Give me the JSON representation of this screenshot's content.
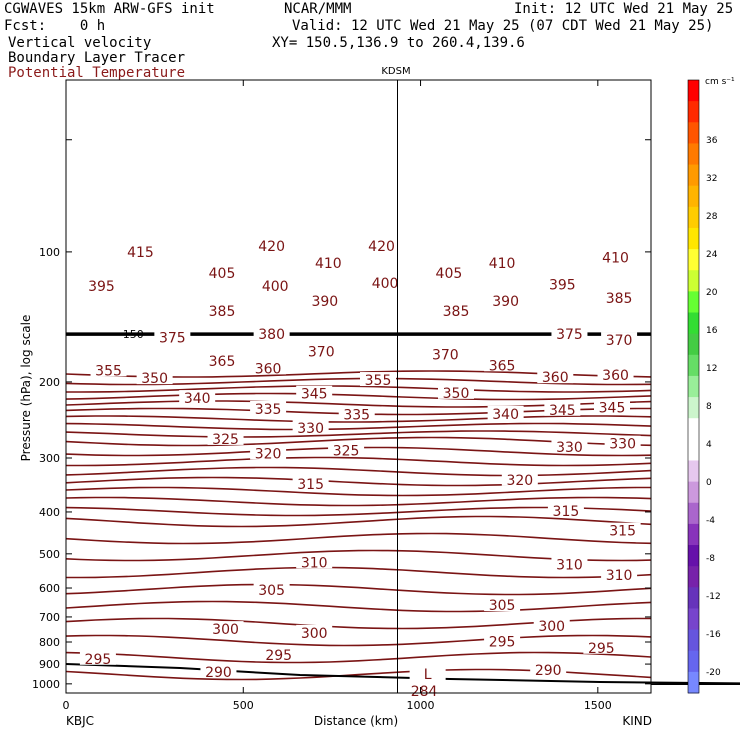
{
  "header": {
    "line1_left": "CGWAVES 15km ARW-GFS init",
    "line1_mid": "NCAR/MMM",
    "line1_right": "Init: 12 UTC Wed 21 May 25",
    "line2_left": "Fcst:    0 h",
    "line2_right": "Valid: 12 UTC Wed 21 May 25 (07 CDT Wed 21 May 25)",
    "line3_left": "Vertical velocity",
    "line3_right": "XY= 150.5,136.9 to 260.4,139.6",
    "line4_left": "Boundary Layer Tracer",
    "line5_left": "Potential Temperature"
  },
  "colors": {
    "contour": "#7a1414",
    "trop": "#000000"
  },
  "chart_data": {
    "type": "contour-cross-section",
    "title": "KDSM",
    "xlabel": "Distance (km)",
    "ylabel": "Pressure (hPa), log scale",
    "xlim": [
      0,
      1650
    ],
    "ylim": [
      1050,
      40
    ],
    "x_ticks": [
      0,
      500,
      1000,
      1500
    ],
    "x_tick_labels": [
      "0",
      "500",
      "1000",
      "1500"
    ],
    "y_ticks": [
      100,
      200,
      300,
      400,
      500,
      600,
      700,
      800,
      900,
      1000
    ],
    "y_tick_labels": [
      "100",
      "200",
      "300",
      "400",
      "500",
      "600",
      "700",
      "800",
      "900",
      "1000"
    ],
    "station_left": "KBJC",
    "station_right": "KIND",
    "vertical_marker_x": 935,
    "colorbar": {
      "units": "cm s⁻¹",
      "labels": [
        "36",
        "32",
        "28",
        "24",
        "20",
        "16",
        "12",
        "8",
        "4",
        "0",
        "-4",
        "-8",
        "-12",
        "-16",
        "-20"
      ],
      "colors": [
        "#ff0000",
        "#ff2a00",
        "#ff5500",
        "#ff7a00",
        "#ff9a00",
        "#ffb400",
        "#ffcc00",
        "#ffe600",
        "#ffff33",
        "#ccff33",
        "#66ff33",
        "#33dd33",
        "#44cc44",
        "#66dd66",
        "#99ee99",
        "#ccf5cc",
        "#ffffff",
        "#ffffff",
        "#e6c8ee",
        "#cc99dd",
        "#aa66cc",
        "#8833bb",
        "#6611aa",
        "#7722aa",
        "#6633bb",
        "#7744cc",
        "#6655dd",
        "#6666ee",
        "#7788ff"
      ]
    },
    "tropopause": {
      "label": "150",
      "pressure": 155
    },
    "labels": [
      {
        "text": "415",
        "x": 210,
        "p": 100
      },
      {
        "text": "420",
        "x": 580,
        "p": 97
      },
      {
        "text": "420",
        "x": 890,
        "p": 97
      },
      {
        "text": "410",
        "x": 740,
        "p": 106
      },
      {
        "text": "410",
        "x": 1230,
        "p": 106
      },
      {
        "text": "410",
        "x": 1550,
        "p": 103
      },
      {
        "text": "405",
        "x": 440,
        "p": 112
      },
      {
        "text": "405",
        "x": 1080,
        "p": 112
      },
      {
        "text": "400",
        "x": 590,
        "p": 120
      },
      {
        "text": "400",
        "x": 900,
        "p": 118
      },
      {
        "text": "395",
        "x": 100,
        "p": 120
      },
      {
        "text": "395",
        "x": 1400,
        "p": 119
      },
      {
        "text": "390",
        "x": 730,
        "p": 130
      },
      {
        "text": "390",
        "x": 1240,
        "p": 130
      },
      {
        "text": "385",
        "x": 440,
        "p": 137
      },
      {
        "text": "385",
        "x": 1100,
        "p": 137
      },
      {
        "text": "385",
        "x": 1560,
        "p": 128
      },
      {
        "text": "380",
        "x": 580,
        "p": 155
      },
      {
        "text": "375",
        "x": 300,
        "p": 158
      },
      {
        "text": "375",
        "x": 1420,
        "p": 155
      },
      {
        "text": "370",
        "x": 720,
        "p": 170
      },
      {
        "text": "370",
        "x": 1070,
        "p": 173
      },
      {
        "text": "370",
        "x": 1560,
        "p": 160
      },
      {
        "text": "365",
        "x": 440,
        "p": 179
      },
      {
        "text": "365",
        "x": 1230,
        "p": 183
      },
      {
        "text": "360",
        "x": 570,
        "p": 186
      },
      {
        "text": "360",
        "x": 1380,
        "p": 195
      },
      {
        "text": "360",
        "x": 1550,
        "p": 193
      },
      {
        "text": "355",
        "x": 120,
        "p": 188
      },
      {
        "text": "355",
        "x": 880,
        "p": 198
      },
      {
        "text": "350",
        "x": 250,
        "p": 196
      },
      {
        "text": "350",
        "x": 1100,
        "p": 212
      },
      {
        "text": "345",
        "x": 700,
        "p": 213
      },
      {
        "text": "345",
        "x": 1400,
        "p": 232
      },
      {
        "text": "345",
        "x": 1540,
        "p": 229
      },
      {
        "text": "340",
        "x": 370,
        "p": 218
      },
      {
        "text": "340",
        "x": 1240,
        "p": 237
      },
      {
        "text": "335",
        "x": 570,
        "p": 231
      },
      {
        "text": "335",
        "x": 820,
        "p": 238
      },
      {
        "text": "330",
        "x": 690,
        "p": 256
      },
      {
        "text": "330",
        "x": 1420,
        "p": 283
      },
      {
        "text": "330",
        "x": 1570,
        "p": 278
      },
      {
        "text": "325",
        "x": 450,
        "p": 271
      },
      {
        "text": "325",
        "x": 790,
        "p": 288
      },
      {
        "text": "320",
        "x": 570,
        "p": 293
      },
      {
        "text": "320",
        "x": 1280,
        "p": 337
      },
      {
        "text": "315",
        "x": 690,
        "p": 345
      },
      {
        "text": "315",
        "x": 1410,
        "p": 398
      },
      {
        "text": "315",
        "x": 1570,
        "p": 442
      },
      {
        "text": "310",
        "x": 700,
        "p": 523
      },
      {
        "text": "310",
        "x": 1420,
        "p": 530
      },
      {
        "text": "310",
        "x": 1560,
        "p": 560
      },
      {
        "text": "305",
        "x": 580,
        "p": 607
      },
      {
        "text": "305",
        "x": 1230,
        "p": 657
      },
      {
        "text": "300",
        "x": 450,
        "p": 747
      },
      {
        "text": "300",
        "x": 700,
        "p": 762
      },
      {
        "text": "300",
        "x": 1370,
        "p": 735
      },
      {
        "text": "295",
        "x": 600,
        "p": 858
      },
      {
        "text": "295",
        "x": 1230,
        "p": 797
      },
      {
        "text": "295",
        "x": 1510,
        "p": 825
      },
      {
        "text": "295",
        "x": 90,
        "p": 875
      },
      {
        "text": "290",
        "x": 430,
        "p": 938
      },
      {
        "text": "290",
        "x": 1360,
        "p": 930
      },
      {
        "text": "284",
        "x": 1010,
        "p": 1040
      },
      {
        "text": "L",
        "x": 1020,
        "p": 950
      }
    ]
  }
}
